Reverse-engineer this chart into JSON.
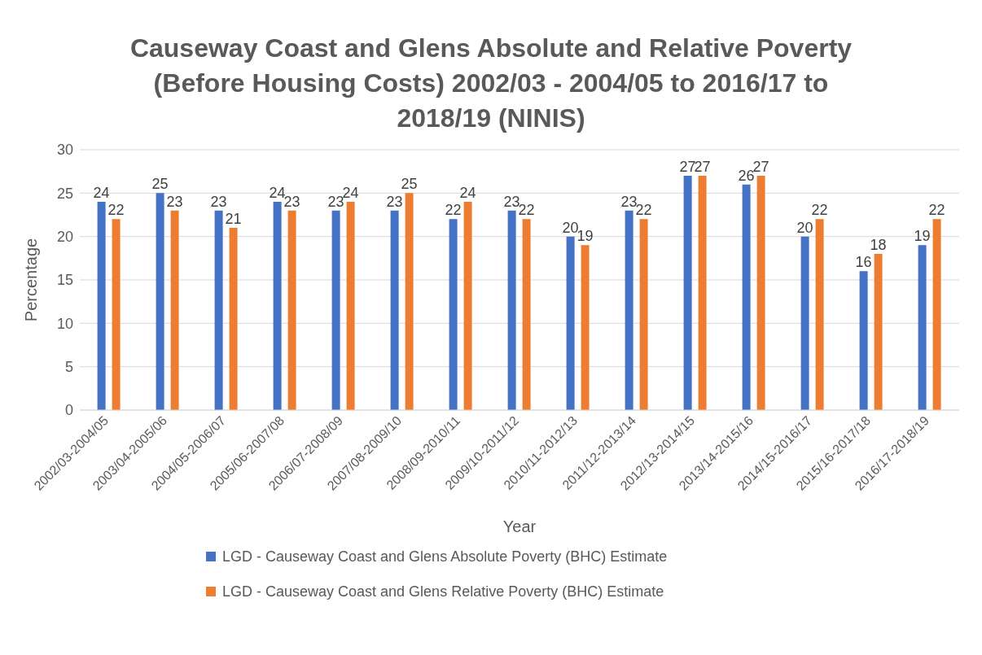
{
  "chart_data": {
    "type": "bar",
    "title": "Causeway Coast and Glens Absolute and Relative Poverty (Before Housing Costs) 2002/03 - 2004/05 to 2016/17 to 2018/19 (NINIS)",
    "xlabel": "Year",
    "ylabel": "Percentage",
    "categories": [
      "2002/03-2004/05",
      "2003/04-2005/06",
      "2004/05-2006/07",
      "2005/06-2007/08",
      "2006/07-2008/09",
      "2007/08-2009/10",
      "2008/09-2010/11",
      "2009/10-2011/12",
      "2010/11-2012/13",
      "2011/12-2013/14",
      "2012/13-2014/15",
      "2013/14-2015/16",
      "2014/15-2016/17",
      "2015/16-2017/18",
      "2016/17-2018/19"
    ],
    "series": [
      {
        "name": "LGD - Causeway Coast and Glens Absolute Poverty (BHC) Estimate",
        "color": "#4472c4",
        "values": [
          24,
          25,
          23,
          24,
          23,
          23,
          22,
          23,
          20,
          23,
          27,
          26,
          20,
          16,
          19
        ]
      },
      {
        "name": "LGD - Causeway Coast and Glens Relative Poverty (BHC) Estimate",
        "color": "#ed7d31",
        "values": [
          22,
          23,
          21,
          23,
          24,
          25,
          24,
          22,
          19,
          22,
          27,
          27,
          22,
          18,
          22
        ]
      }
    ],
    "ylim": [
      0,
      30
    ],
    "yticks": [
      0,
      5,
      10,
      15,
      20,
      25,
      30
    ],
    "grid": "y",
    "legend": "bottom",
    "data_labels": true
  }
}
